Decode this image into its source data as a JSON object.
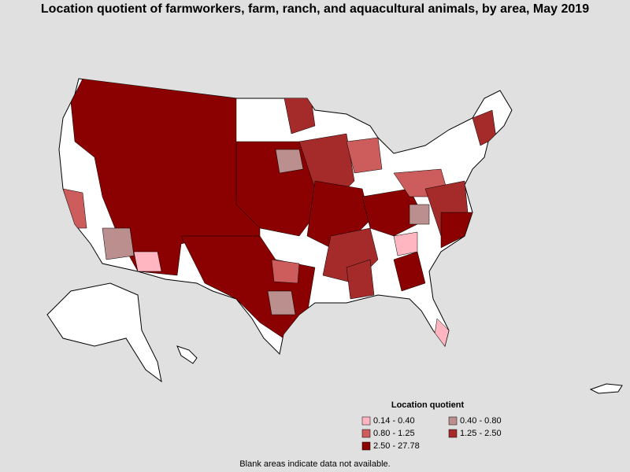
{
  "title": "Location quotient of farmworkers, farm, ranch, and aquacultural animals, by area, May 2019",
  "legend": {
    "title": "Location quotient",
    "items": [
      {
        "label": "0.14 - 0.40",
        "color": "#ffb6c1"
      },
      {
        "label": "0.40 - 0.80",
        "color": "#bc8f8f"
      },
      {
        "label": "0.80 - 1.25",
        "color": "#cd5c5c"
      },
      {
        "label": "1.25 - 2.50",
        "color": "#a52a2a"
      },
      {
        "label": "2.50 - 27.78",
        "color": "#8b0000"
      }
    ]
  },
  "footnote": "Blank areas indicate data not available."
}
